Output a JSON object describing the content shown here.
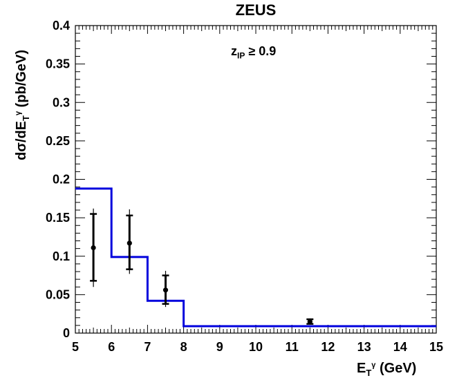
{
  "chart_data": {
    "type": "line",
    "title": "ZEUS",
    "annotation": {
      "main": "z",
      "sub": "IP",
      "rest": " ≥ 0.9"
    },
    "xlabel": {
      "main": "E",
      "sub": "T",
      "sup": "γ",
      "rest": " (GeV)"
    },
    "ylabel": {
      "pre": "dσ/dE",
      "sub": "T",
      "sup": "γ",
      "rest": " (pb/GeV)"
    },
    "xlim": [
      5,
      15
    ],
    "ylim": [
      0,
      0.4
    ],
    "xticks": [
      "5",
      "6",
      "7",
      "8",
      "9",
      "10",
      "11",
      "12",
      "13",
      "14",
      "15"
    ],
    "yticks": [
      "0",
      "0.05",
      "0.1",
      "0.15",
      "0.2",
      "0.25",
      "0.3",
      "0.35",
      "0.4"
    ],
    "series": [
      {
        "kind": "histogram",
        "color": "#0000dd",
        "bins": [
          {
            "x0": 5,
            "x1": 6,
            "y": 0.188
          },
          {
            "x0": 6,
            "x1": 7,
            "y": 0.099
          },
          {
            "x0": 7,
            "x1": 8,
            "y": 0.042
          },
          {
            "x0": 8,
            "x1": 15,
            "y": 0.009
          }
        ]
      },
      {
        "kind": "points",
        "color": "#000000",
        "points": [
          {
            "x": 5.5,
            "y": 0.111,
            "stat": [
              0.068,
              0.155
            ],
            "sys": [
              0.06,
              0.162
            ]
          },
          {
            "x": 6.5,
            "y": 0.117,
            "stat": [
              0.083,
              0.153
            ],
            "sys": [
              0.077,
              0.161
            ]
          },
          {
            "x": 7.5,
            "y": 0.056,
            "stat": [
              0.038,
              0.075
            ],
            "sys": [
              0.034,
              0.081
            ]
          },
          {
            "x": 11.5,
            "y": 0.015,
            "stat": [
              0.012,
              0.018
            ],
            "sys": [
              0.011,
              0.019
            ]
          }
        ]
      }
    ]
  }
}
